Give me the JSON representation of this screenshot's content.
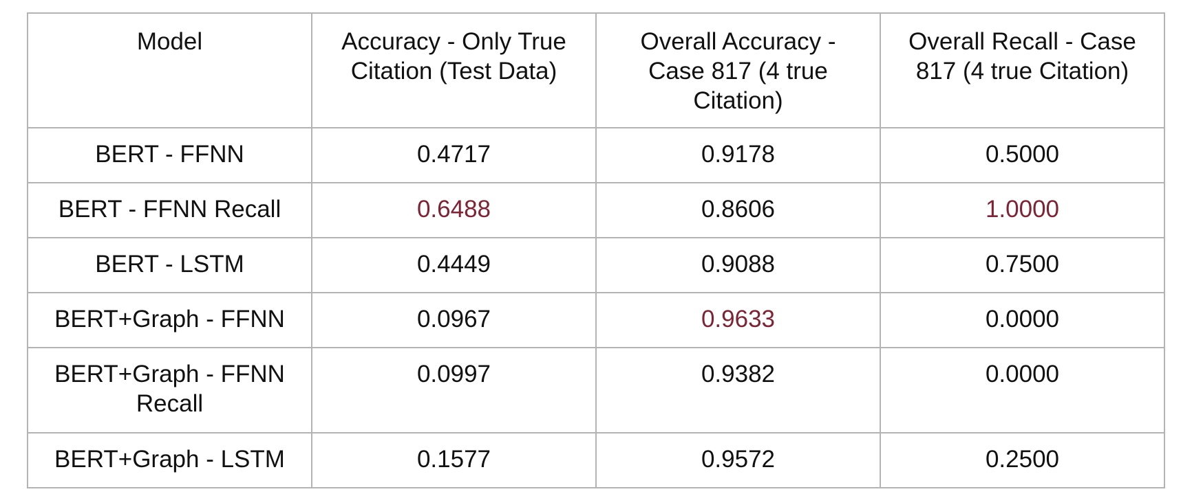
{
  "table": {
    "headers": [
      "Model",
      "Accuracy - Only True Citation (Test Data)",
      "Overall Accuracy - Case 817 (4 true Citation)",
      "Overall Recall - Case 817 (4 true Citation)"
    ],
    "rows": [
      [
        "BERT - FFNN",
        "0.4717",
        "0.9178",
        "0.5000"
      ],
      [
        "BERT - FFNN Recall",
        "0.6488",
        "0.8606",
        "1.0000"
      ],
      [
        "BERT - LSTM",
        "0.4449",
        "0.9088",
        "0.7500"
      ],
      [
        "BERT+Graph - FFNN",
        "0.0967",
        "0.9633",
        "0.0000"
      ],
      [
        "BERT+Graph - FFNN Recall",
        "0.0997",
        "0.9382",
        "0.0000"
      ],
      [
        "BERT+Graph - LSTM",
        "0.1577",
        "0.9572",
        "0.2500"
      ]
    ],
    "highlight_color": "#7f2233",
    "border_color": "#b3b3b3"
  }
}
